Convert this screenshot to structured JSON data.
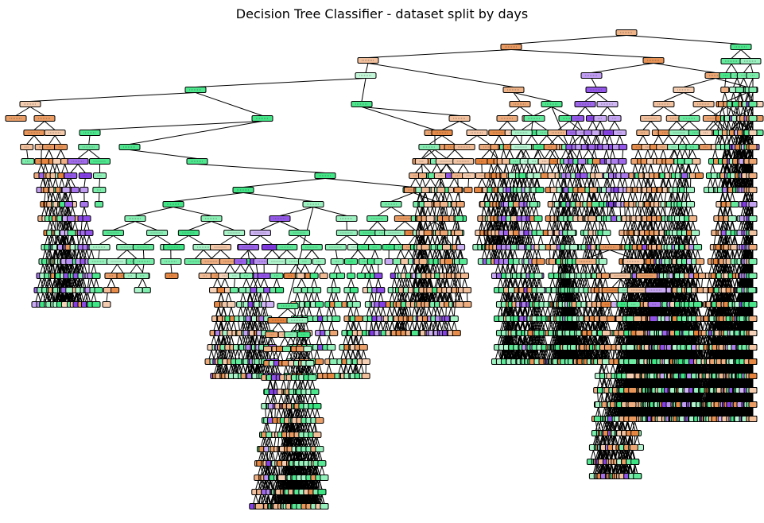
{
  "figure": {
    "title": "Decision Tree Classifier - dataset split by days"
  },
  "colors": {
    "class_a": "#e58139",
    "class_b": "#39e581",
    "class_c": "#8139e5",
    "edge": "#000000",
    "node_border": "#000000"
  },
  "tree": {
    "classes_shown": [
      "class_a",
      "class_b",
      "class_c"
    ],
    "node_labels_legible": false
  }
}
